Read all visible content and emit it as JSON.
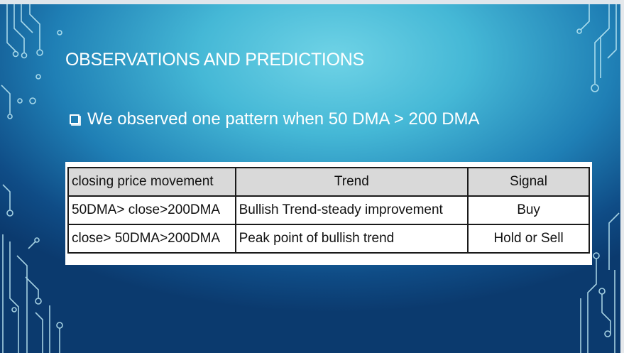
{
  "slide": {
    "title": "OBSERVATIONS AND PREDICTIONS",
    "bullet_text": "We observed one pattern when 50 DMA  > 200 DMA",
    "colors": {
      "background_center": "#6fd3e6",
      "background_edge": "#0b3a6e",
      "text": "#ffffff",
      "table_header_fill": "#d9d9d9"
    }
  },
  "table": {
    "headers": [
      "closing price movement",
      "Trend",
      "Signal"
    ],
    "rows": [
      [
        "50DMA> close>200DMA",
        "Bullish Trend-steady improvement",
        "Buy"
      ],
      [
        "close> 50DMA>200DMA",
        "Peak point of bullish trend",
        "Hold or Sell"
      ]
    ]
  }
}
